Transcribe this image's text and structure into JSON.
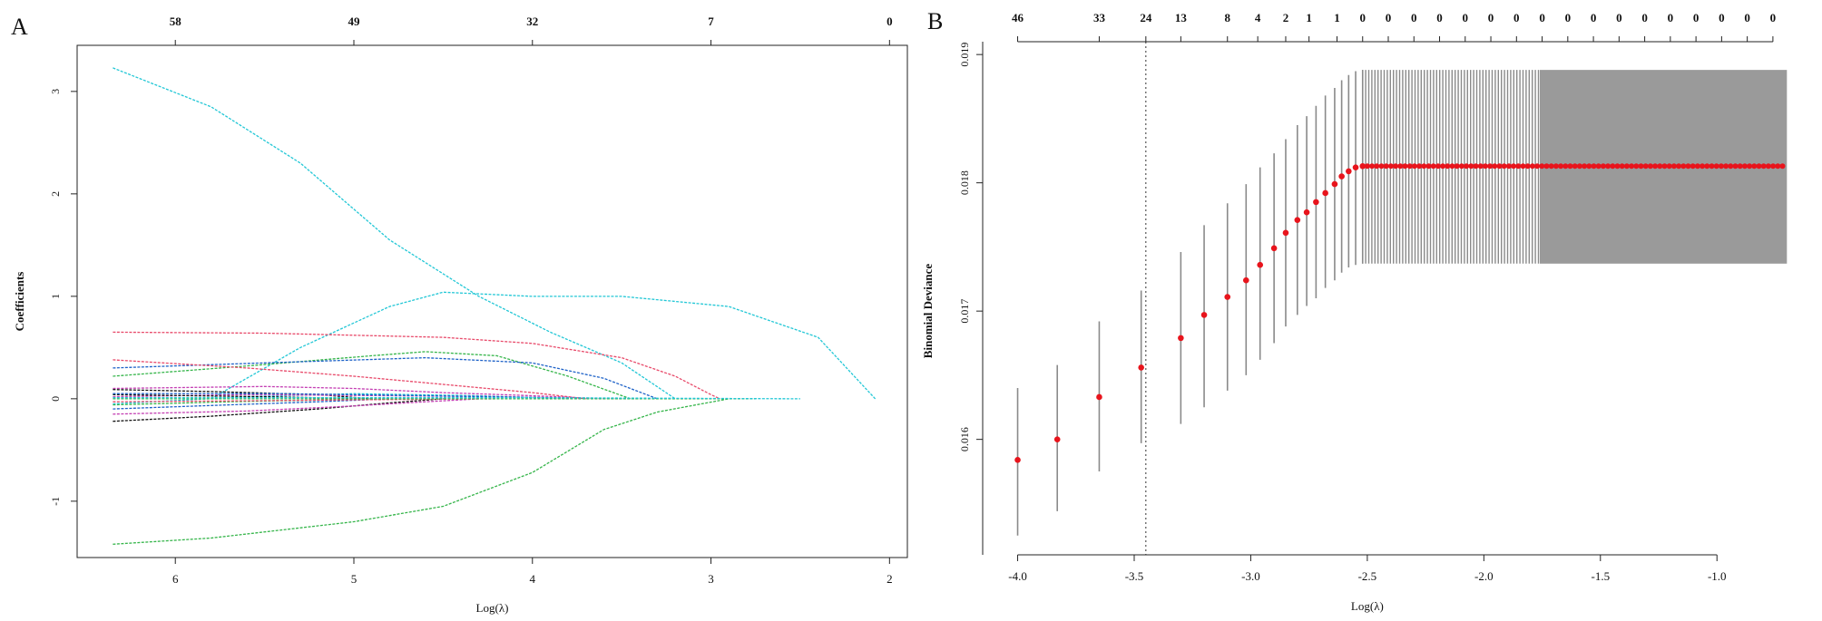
{
  "panels": [
    {
      "letter": "A"
    },
    {
      "letter": "B"
    }
  ],
  "chart_data": [
    {
      "type": "line",
      "title": "",
      "xlabel": "Log(λ)",
      "ylabel": "Coefficients",
      "xlim": [
        6.55,
        1.9
      ],
      "ylim": [
        -1.55,
        3.45
      ],
      "xticks": [
        6,
        5,
        4,
        3,
        2
      ],
      "yticks": [
        -1,
        0,
        1,
        2,
        3
      ],
      "top_axis": {
        "ticks": [
          6.0,
          5.0,
          4.0,
          3.0,
          2.0
        ],
        "labels": [
          "58",
          "49",
          "32",
          "7",
          "0"
        ]
      },
      "series": [
        {
          "name": "coef_1",
          "color": "#22c7d6",
          "points": [
            [
              6.35,
              3.23
            ],
            [
              5.8,
              2.85
            ],
            [
              5.3,
              2.3
            ],
            [
              4.8,
              1.55
            ],
            [
              4.3,
              1.0
            ],
            [
              3.9,
              0.65
            ],
            [
              3.5,
              0.35
            ],
            [
              3.2,
              0.0
            ]
          ]
        },
        {
          "name": "coef_2",
          "color": "#22c7d6",
          "points": [
            [
              5.8,
              0.0
            ],
            [
              5.3,
              0.5
            ],
            [
              4.8,
              0.9
            ],
            [
              4.5,
              1.04
            ],
            [
              4.0,
              1.0
            ],
            [
              3.5,
              1.0
            ],
            [
              2.9,
              0.9
            ],
            [
              2.4,
              0.6
            ],
            [
              2.08,
              0.0
            ]
          ]
        },
        {
          "name": "coef_3",
          "color": "#35b54a",
          "points": [
            [
              6.35,
              -1.42
            ],
            [
              5.8,
              -1.36
            ],
            [
              5.0,
              -1.2
            ],
            [
              4.5,
              -1.05
            ],
            [
              4.0,
              -0.72
            ],
            [
              3.6,
              -0.3
            ],
            [
              3.3,
              -0.13
            ],
            [
              2.9,
              0.0
            ]
          ]
        },
        {
          "name": "coef_4",
          "color": "#e84a6a",
          "points": [
            [
              6.35,
              0.65
            ],
            [
              5.5,
              0.64
            ],
            [
              4.5,
              0.6
            ],
            [
              4.0,
              0.54
            ],
            [
              3.5,
              0.4
            ],
            [
              3.2,
              0.22
            ],
            [
              3.0,
              0.04
            ],
            [
              2.95,
              0.0
            ]
          ]
        },
        {
          "name": "coef_5",
          "color": "#35b54a",
          "points": [
            [
              6.35,
              0.22
            ],
            [
              5.6,
              0.32
            ],
            [
              4.9,
              0.42
            ],
            [
              4.6,
              0.46
            ],
            [
              4.2,
              0.42
            ],
            [
              3.8,
              0.22
            ],
            [
              3.45,
              0.0
            ]
          ]
        },
        {
          "name": "coef_6",
          "color": "#1e62c8",
          "points": [
            [
              6.35,
              0.3
            ],
            [
              5.5,
              0.35
            ],
            [
              4.6,
              0.4
            ],
            [
              4.0,
              0.35
            ],
            [
              3.6,
              0.2
            ],
            [
              3.3,
              0.0
            ]
          ]
        },
        {
          "name": "coef_7",
          "color": "#e84a6a",
          "points": [
            [
              6.35,
              0.38
            ],
            [
              5.6,
              0.3
            ],
            [
              5.0,
              0.22
            ],
            [
              4.5,
              0.14
            ],
            [
              4.0,
              0.06
            ],
            [
              3.7,
              0.0
            ]
          ]
        },
        {
          "name": "coef_8",
          "color": "#c43fb3",
          "points": [
            [
              6.35,
              0.1
            ],
            [
              5.5,
              0.12
            ],
            [
              5.0,
              0.1
            ],
            [
              4.5,
              0.06
            ],
            [
              4.0,
              0.03
            ],
            [
              3.6,
              0.0
            ]
          ]
        },
        {
          "name": "coef_9",
          "color": "#111111",
          "points": [
            [
              6.35,
              0.09
            ],
            [
              5.8,
              0.07
            ],
            [
              5.2,
              0.04
            ],
            [
              4.9,
              0.0
            ]
          ]
        },
        {
          "name": "coef_10",
          "color": "#111111",
          "points": [
            [
              6.35,
              -0.22
            ],
            [
              5.8,
              -0.17
            ],
            [
              5.2,
              -0.1
            ],
            [
              4.8,
              -0.04
            ],
            [
              4.5,
              0.0
            ]
          ]
        },
        {
          "name": "coef_11",
          "color": "#c43fb3",
          "points": [
            [
              6.35,
              -0.15
            ],
            [
              5.6,
              -0.12
            ],
            [
              5.0,
              -0.07
            ],
            [
              4.6,
              -0.03
            ],
            [
              4.3,
              0.0
            ]
          ]
        },
        {
          "name": "coef_12",
          "color": "#1e62c8",
          "points": [
            [
              6.35,
              -0.1
            ],
            [
              5.7,
              -0.06
            ],
            [
              5.2,
              -0.03
            ],
            [
              4.8,
              0.0
            ]
          ]
        },
        {
          "name": "coef_13",
          "color": "#22c7d6",
          "points": [
            [
              6.35,
              -0.05
            ],
            [
              5.6,
              0.02
            ],
            [
              5.0,
              0.05
            ],
            [
              4.3,
              0.03
            ],
            [
              3.8,
              0.0
            ]
          ]
        },
        {
          "name": "coef_14",
          "color": "#c43fb3",
          "points": [
            [
              6.35,
              0.02
            ],
            [
              5.6,
              0.04
            ],
            [
              4.8,
              0.03
            ],
            [
              4.2,
              0.02
            ],
            [
              3.5,
              0.0
            ]
          ]
        },
        {
          "name": "coef_15",
          "color": "#35b54a",
          "points": [
            [
              6.35,
              -0.06
            ],
            [
              5.7,
              -0.03
            ],
            [
              5.1,
              -0.01
            ],
            [
              4.6,
              0.0
            ]
          ]
        },
        {
          "name": "coef_16",
          "color": "#111111",
          "points": [
            [
              6.35,
              0.04
            ],
            [
              5.5,
              0.02
            ],
            [
              4.9,
              0.0
            ]
          ]
        },
        {
          "name": "coef_17",
          "color": "#e84a6a",
          "points": [
            [
              6.35,
              -0.03
            ],
            [
              5.6,
              -0.02
            ],
            [
              5.0,
              -0.01
            ],
            [
              4.2,
              0.0
            ]
          ]
        },
        {
          "name": "coef_18",
          "color": "#1e62c8",
          "points": [
            [
              6.35,
              0.05
            ],
            [
              5.4,
              0.05
            ],
            [
              4.6,
              0.03
            ],
            [
              3.9,
              0.01
            ],
            [
              3.4,
              0.0
            ]
          ]
        },
        {
          "name": "coef_19",
          "color": "#35b54a",
          "points": [
            [
              6.35,
              0.0
            ],
            [
              2.75,
              0.0
            ]
          ]
        },
        {
          "name": "coef_20",
          "color": "#22c7d6",
          "points": [
            [
              6.35,
              0.01
            ],
            [
              4.0,
              0.01
            ],
            [
              2.5,
              0.0
            ]
          ]
        }
      ]
    },
    {
      "type": "scatter",
      "title": "",
      "xlabel": "Log(λ)",
      "ylabel": "Binomial Deviance",
      "xlim": [
        -4.15,
        -0.6
      ],
      "ylim": [
        0.0151,
        0.0191
      ],
      "xticks": [
        -4.0,
        -3.5,
        -3.0,
        -2.5,
        -2.0,
        -1.5,
        -1.0
      ],
      "yticks": [
        0.016,
        0.017,
        0.018,
        0.019
      ],
      "top_axis": {
        "ticks": [
          -4.0,
          -3.65,
          -3.45,
          -3.3,
          -3.1,
          -2.97,
          -2.85,
          -2.75,
          -2.63,
          -2.52,
          -2.41,
          -2.3,
          -2.19,
          -2.08,
          -1.97,
          -1.86,
          -1.75,
          -1.64,
          -1.53,
          -1.42,
          -1.31,
          -1.2,
          -1.09,
          -0.98,
          -0.87,
          -0.76
        ],
        "labels": [
          "46",
          "33",
          "24",
          "13",
          "8",
          "4",
          "2",
          "1",
          "1",
          "0",
          "0",
          "0",
          "0",
          "0",
          "0",
          "0",
          "0",
          "0",
          "0",
          "0",
          "0",
          "0",
          "0",
          "0",
          "0",
          "0"
        ]
      },
      "lambda_min_line": -3.45,
      "points": [
        {
          "x": -4.0,
          "y": 0.01584,
          "lo": 0.01525,
          "hi": 0.0164
        },
        {
          "x": -3.83,
          "y": 0.016,
          "lo": 0.01544,
          "hi": 0.01658
        },
        {
          "x": -3.65,
          "y": 0.01633,
          "lo": 0.01575,
          "hi": 0.01692
        },
        {
          "x": -3.47,
          "y": 0.01656,
          "lo": 0.01597,
          "hi": 0.01716
        },
        {
          "x": -3.3,
          "y": 0.01679,
          "lo": 0.01612,
          "hi": 0.01746
        },
        {
          "x": -3.2,
          "y": 0.01697,
          "lo": 0.01625,
          "hi": 0.01767
        },
        {
          "x": -3.1,
          "y": 0.01711,
          "lo": 0.01638,
          "hi": 0.01784
        },
        {
          "x": -3.02,
          "y": 0.01724,
          "lo": 0.0165,
          "hi": 0.01799
        },
        {
          "x": -2.96,
          "y": 0.01736,
          "lo": 0.01662,
          "hi": 0.01812
        },
        {
          "x": -2.9,
          "y": 0.01749,
          "lo": 0.01675,
          "hi": 0.01823
        },
        {
          "x": -2.85,
          "y": 0.01761,
          "lo": 0.01688,
          "hi": 0.01834
        },
        {
          "x": -2.8,
          "y": 0.01771,
          "lo": 0.01697,
          "hi": 0.01845
        },
        {
          "x": -2.76,
          "y": 0.01777,
          "lo": 0.01704,
          "hi": 0.01852
        },
        {
          "x": -2.72,
          "y": 0.01785,
          "lo": 0.0171,
          "hi": 0.0186
        },
        {
          "x": -2.68,
          "y": 0.01792,
          "lo": 0.01718,
          "hi": 0.01868
        },
        {
          "x": -2.64,
          "y": 0.01799,
          "lo": 0.01724,
          "hi": 0.01874
        },
        {
          "x": -2.61,
          "y": 0.01805,
          "lo": 0.0173,
          "hi": 0.0188
        },
        {
          "x": -2.58,
          "y": 0.01809,
          "lo": 0.01734,
          "hi": 0.01884
        },
        {
          "x": -2.55,
          "y": 0.01812,
          "lo": 0.01736,
          "hi": 0.01887
        },
        {
          "x": -2.52,
          "y": 0.01813,
          "lo": 0.01737,
          "hi": 0.01888
        }
      ],
      "plateau": {
        "from": -2.52,
        "to": -0.7,
        "y": 0.01813,
        "lo": 0.01737,
        "hi": 0.01888
      }
    }
  ]
}
